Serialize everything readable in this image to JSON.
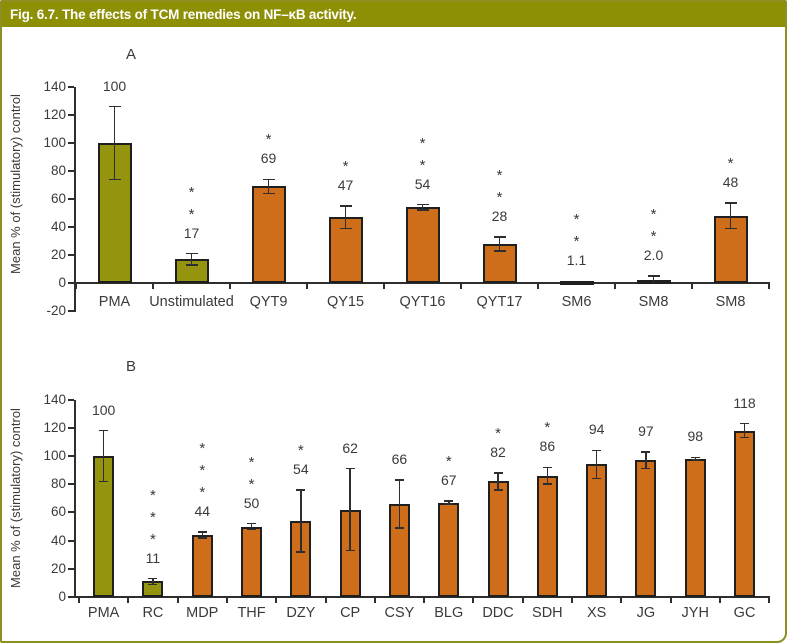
{
  "figure": {
    "title": "Fig. 6.7. The effects of TCM remedies on NF–κB activity."
  },
  "colors": {
    "green": "#95940f",
    "orange": "#cf6e1a",
    "lightblue": "#c9d6ee",
    "bar_border": "#1f1f1f",
    "axis": "#2e2e2e",
    "text": "#3a3a3a",
    "titlebar_bg": "#8d8f04",
    "titlebar_text": "#ffffff",
    "figure_border": "#8d9021"
  },
  "chart_data": [
    {
      "type": "bar",
      "panel_label": "A",
      "title": "",
      "xlabel": "",
      "ylabel": "Mean % of (stimulatory) control",
      "ylim": [
        -20,
        140
      ],
      "yticks": [
        140,
        120,
        100,
        80,
        60,
        40,
        20,
        0,
        -20
      ],
      "grid": false,
      "legend": "none",
      "categories": [
        "PMA",
        "Unstimulated",
        "QYT9",
        "QY15",
        "QYT16",
        "QYT17",
        "SM6",
        "SM8",
        "SM8"
      ],
      "values": [
        100,
        17,
        69,
        47,
        54,
        28,
        1.1,
        2.0,
        48
      ],
      "data_labels": [
        "100",
        "17",
        "69",
        "47",
        "54",
        "28",
        "1.1",
        "2.0",
        "48"
      ],
      "errors": [
        26,
        4,
        5,
        8,
        2,
        5,
        0,
        3,
        9
      ],
      "significance": [
        "",
        "**",
        "*",
        "*",
        "**",
        "**",
        "**",
        "**",
        "*"
      ],
      "bar_colors": [
        "green",
        "green",
        "orange",
        "orange",
        "orange",
        "orange",
        "lightblue",
        "orange",
        "orange"
      ]
    },
    {
      "type": "bar",
      "panel_label": "B",
      "title": "",
      "xlabel": "",
      "ylabel": "Mean % of (stimulatory) control",
      "ylim": [
        0,
        140
      ],
      "yticks": [
        140,
        120,
        100,
        80,
        60,
        40,
        20,
        0
      ],
      "grid": false,
      "legend": "none",
      "categories": [
        "PMA",
        "RC",
        "MDP",
        "THF",
        "DZY",
        "CP",
        "CSY",
        "BLG",
        "DDC",
        "SDH",
        "XS",
        "JG",
        "JYH",
        "GC"
      ],
      "values": [
        100,
        11,
        44,
        50,
        54,
        62,
        66,
        67,
        82,
        86,
        94,
        97,
        98,
        118
      ],
      "data_labels": [
        "100",
        "11",
        "44",
        "50",
        "54",
        "62",
        "66",
        "67",
        "82",
        "86",
        "94",
        "97",
        "98",
        "118"
      ],
      "errors": [
        18,
        2,
        2,
        2,
        22,
        29,
        17,
        1,
        6,
        6,
        10,
        6,
        1,
        5
      ],
      "significance": [
        "",
        "***",
        "***",
        "**",
        "*",
        "",
        "",
        "*",
        "*",
        "*",
        "",
        "",
        "",
        ""
      ],
      "bar_colors": [
        "green",
        "green",
        "orange",
        "orange",
        "orange",
        "orange",
        "orange",
        "orange",
        "orange",
        "orange",
        "orange",
        "orange",
        "orange",
        "orange"
      ]
    }
  ]
}
